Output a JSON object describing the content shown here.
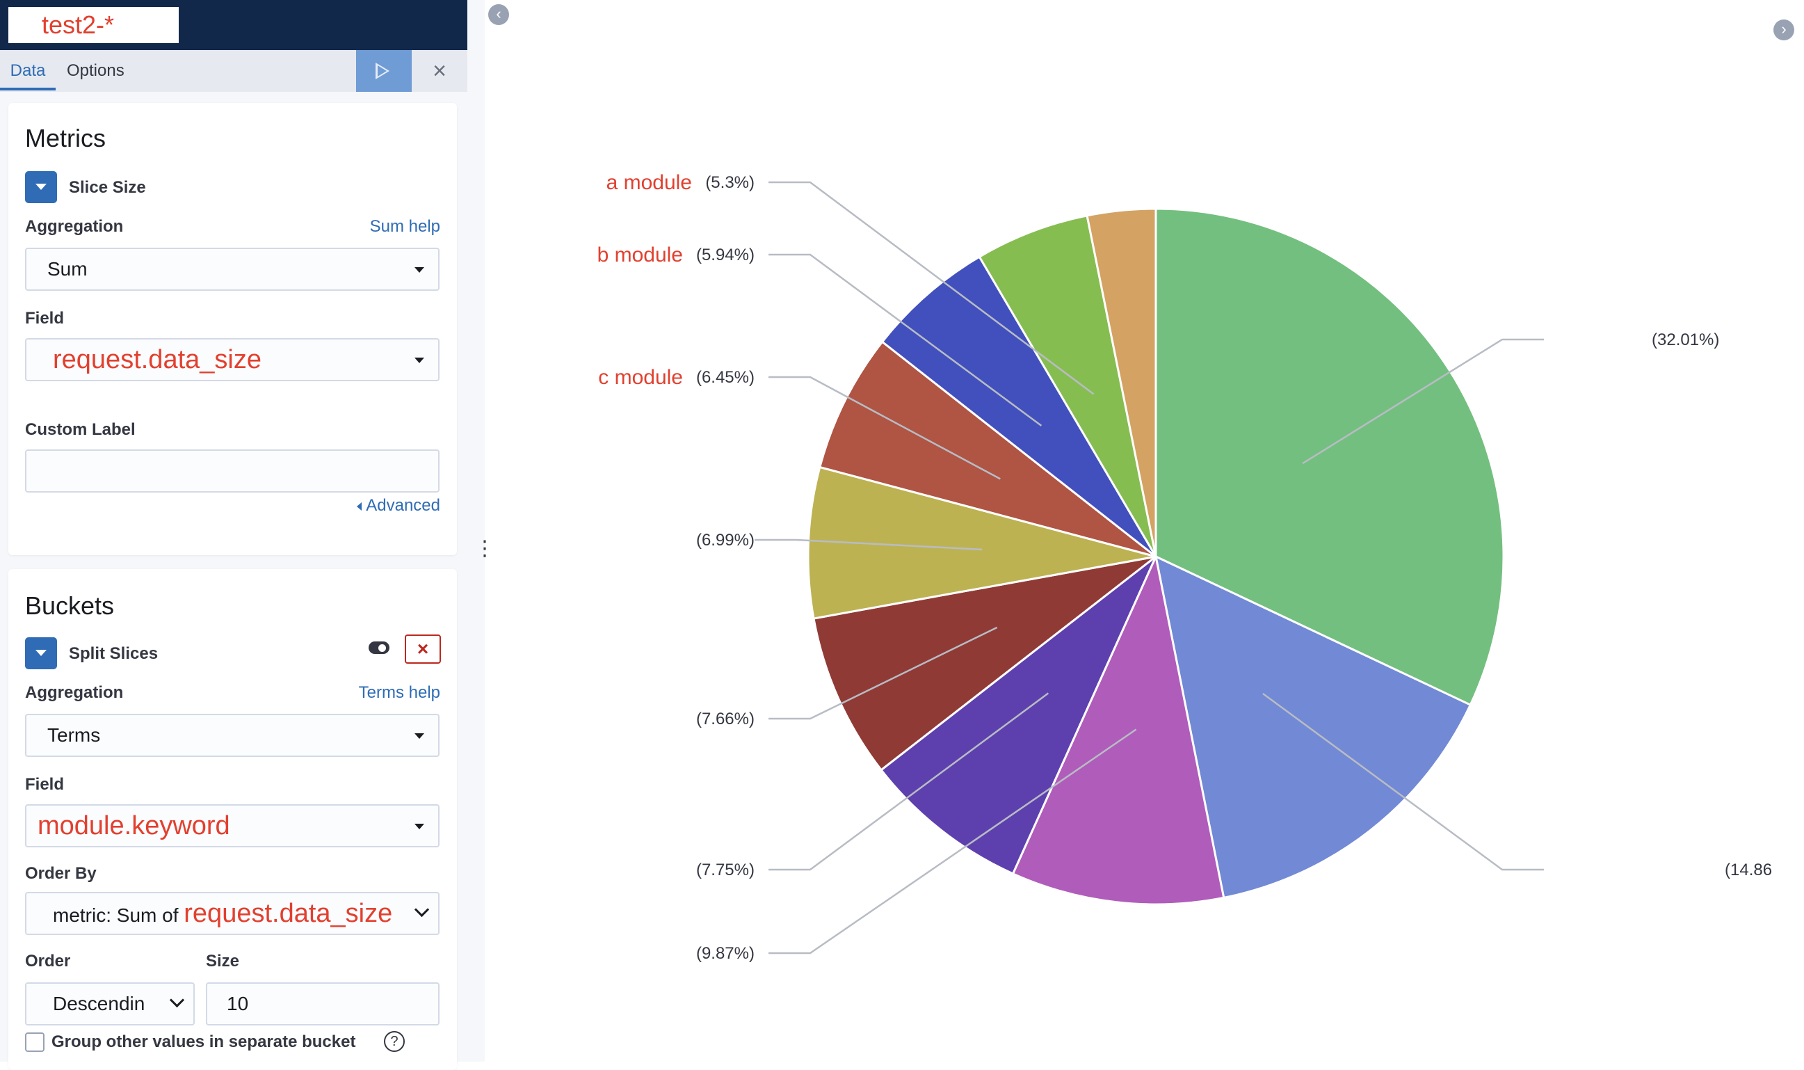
{
  "header": {
    "index_pattern": "test2-*"
  },
  "tabs": {
    "data": "Data",
    "options": "Options"
  },
  "metrics": {
    "title": "Metrics",
    "agg_title": "Slice Size",
    "aggregation_label": "Aggregation",
    "aggregation_help": "Sum help",
    "aggregation_value": "Sum",
    "field_label": "Field",
    "field_value": "request.data_size",
    "custom_label_label": "Custom Label",
    "custom_label_value": "",
    "advanced_link": "Advanced"
  },
  "buckets": {
    "title": "Buckets",
    "agg_title": "Split Slices",
    "aggregation_label": "Aggregation",
    "aggregation_help": "Terms help",
    "aggregation_value": "Terms",
    "field_label": "Field",
    "field_value": "module.keyword",
    "order_by_label": "Order By",
    "order_by_prefix": "metric: Sum of ",
    "order_by_field": "request.data_size",
    "order_label": "Order",
    "order_value": "Descendin",
    "size_label": "Size",
    "size_value": "10",
    "group_other_label": "Group other values in separate bucket",
    "help_glyph": "?"
  },
  "icons": {
    "play": "play-icon",
    "close": "close-icon",
    "collapse_left": "chevron-left-icon",
    "collapse_right": "chevron-right-icon",
    "remove": "cross-icon",
    "toggle": "toggle-icon",
    "help": "question-circle-icon"
  },
  "glyphs": {
    "close": "×",
    "remove": "×",
    "left": "‹",
    "right": "›",
    "dots": "⋮"
  },
  "chart_data": {
    "type": "pie",
    "slices": [
      {
        "percent": 32.01,
        "label": "(32.01%)",
        "color": "#73bf7f"
      },
      {
        "percent": 14.86,
        "label": "(14.86",
        "color": "#7289d5"
      },
      {
        "percent": 9.87,
        "label": "(9.87%)",
        "color": "#b05cba"
      },
      {
        "percent": 7.75,
        "label": "(7.75%)",
        "color": "#5d40ae"
      },
      {
        "percent": 7.66,
        "label": "(7.66%)",
        "color": "#903a36"
      },
      {
        "percent": 6.99,
        "label": "(6.99%)",
        "color": "#bdb252"
      },
      {
        "percent": 6.45,
        "label": "(6.45%)",
        "name": "c module",
        "color": "#b05444"
      },
      {
        "percent": 5.94,
        "label": "(5.94%)",
        "name": "b module",
        "color": "#4150bd"
      },
      {
        "percent": 5.3,
        "label": "(5.3%)",
        "name": "a module",
        "color": "#86bd51"
      },
      {
        "percent": 3.17,
        "label": "",
        "color": "#d4a263"
      }
    ]
  }
}
